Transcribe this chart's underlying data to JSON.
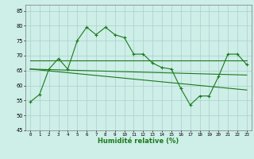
{
  "line1_x": [
    0,
    1,
    2,
    3,
    4,
    5,
    6,
    7,
    8,
    9,
    10,
    11,
    12,
    13,
    14,
    15,
    16,
    17,
    18,
    19,
    20,
    21,
    22,
    23
  ],
  "line1_y": [
    54.5,
    57,
    65.5,
    69,
    65.5,
    75,
    79.5,
    77,
    79.5,
    77,
    76,
    70.5,
    70.5,
    67.5,
    66,
    65.5,
    59,
    53.5,
    56.5,
    56.5,
    63,
    70.5,
    70.5,
    67
  ],
  "trend1_x": [
    0,
    23
  ],
  "trend1_y": [
    68.5,
    68.5
  ],
  "trend2_x": [
    0,
    23
  ],
  "trend2_y": [
    65.5,
    63.5
  ],
  "trend3_x": [
    0,
    23
  ],
  "trend3_y": [
    65.5,
    58.5
  ],
  "background_color": "#ceeee8",
  "grid_color": "#aacfcc",
  "line_color": "#1a7a1a",
  "xlabel": "Humidité relative (%)",
  "xlim": [
    -0.5,
    23.5
  ],
  "ylim": [
    45,
    87
  ],
  "yticks": [
    45,
    50,
    55,
    60,
    65,
    70,
    75,
    80,
    85
  ],
  "xticks": [
    0,
    1,
    2,
    3,
    4,
    5,
    6,
    7,
    8,
    9,
    10,
    11,
    12,
    13,
    14,
    15,
    16,
    17,
    18,
    19,
    20,
    21,
    22,
    23
  ]
}
